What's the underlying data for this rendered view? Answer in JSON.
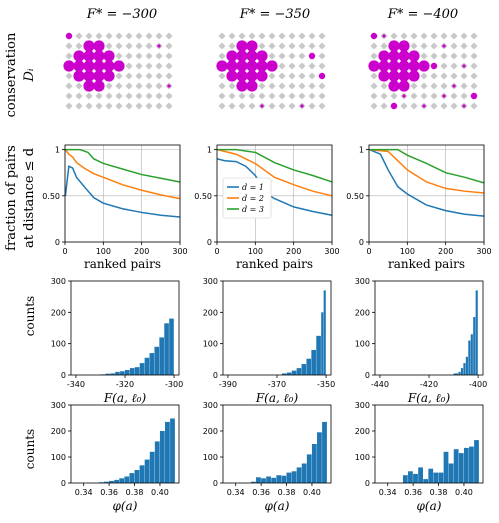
{
  "column_titles": [
    "F* = −300",
    "F* = −350",
    "F* = −400"
  ],
  "row_labels": {
    "conservation": [
      "conservation",
      "Dᵢ"
    ],
    "fraction": [
      "fraction of pairs",
      "at distance ≤ d"
    ],
    "counts": "counts"
  },
  "colors": {
    "d1": "#1f77b4",
    "d2": "#ff7f0e",
    "d3": "#2ca02c",
    "hist": "#1f77b4",
    "dot": "#cc00cc",
    "grid_dot": "#c8c8c8"
  },
  "chart_data": [
    {
      "type": "scatter",
      "panel": "conservation",
      "column": 0,
      "description_values": "dot sizes encode conservation D_i"
    },
    {
      "type": "line",
      "panel": "fraction",
      "column": 0,
      "xlabel": "ranked pairs",
      "ylabel": "fraction of pairs at distance ≤ d",
      "xlim": [
        0,
        300
      ],
      "ylim": [
        0.0,
        1.05
      ],
      "xticks": [
        0,
        100,
        200,
        300
      ],
      "yticks": [
        0.0,
        0.5,
        1.0
      ],
      "series": [
        {
          "name": "d = 1",
          "x": [
            1,
            10,
            20,
            30,
            50,
            75,
            100,
            150,
            200,
            250,
            300
          ],
          "values": [
            0.5,
            0.82,
            0.8,
            0.7,
            0.6,
            0.48,
            0.42,
            0.36,
            0.32,
            0.29,
            0.27
          ]
        },
        {
          "name": "d = 2",
          "x": [
            1,
            10,
            20,
            30,
            50,
            75,
            100,
            150,
            200,
            250,
            300
          ],
          "values": [
            1.0,
            0.95,
            0.92,
            0.86,
            0.8,
            0.74,
            0.7,
            0.62,
            0.56,
            0.51,
            0.47
          ]
        },
        {
          "name": "d = 3",
          "x": [
            1,
            20,
            40,
            60,
            75,
            100,
            150,
            200,
            250,
            300
          ],
          "values": [
            1.0,
            1.0,
            1.0,
            0.97,
            0.9,
            0.85,
            0.79,
            0.73,
            0.69,
            0.65
          ]
        }
      ]
    },
    {
      "type": "line",
      "panel": "fraction",
      "column": 1,
      "xlabel": "ranked pairs",
      "xlim": [
        0,
        300
      ],
      "ylim": [
        0.0,
        1.05
      ],
      "xticks": [
        0,
        100,
        200,
        300
      ],
      "yticks": [
        0.0,
        0.5,
        1.0
      ],
      "legend": "left",
      "series": [
        {
          "name": "d = 1",
          "x": [
            1,
            20,
            50,
            75,
            100,
            130,
            150,
            200,
            250,
            300
          ],
          "values": [
            0.9,
            0.88,
            0.87,
            0.82,
            0.72,
            0.52,
            0.47,
            0.38,
            0.33,
            0.29
          ]
        },
        {
          "name": "d = 2",
          "x": [
            1,
            50,
            100,
            150,
            200,
            250,
            300
          ],
          "values": [
            1.0,
            0.95,
            0.85,
            0.7,
            0.62,
            0.55,
            0.5
          ]
        },
        {
          "name": "d = 3",
          "x": [
            1,
            50,
            100,
            150,
            200,
            250,
            300
          ],
          "values": [
            1.0,
            1.0,
            0.97,
            0.86,
            0.78,
            0.72,
            0.65
          ]
        }
      ]
    },
    {
      "type": "line",
      "panel": "fraction",
      "column": 2,
      "xlabel": "ranked pairs",
      "xlim": [
        0,
        300
      ],
      "ylim": [
        0.0,
        1.05
      ],
      "xticks": [
        0,
        100,
        200,
        300
      ],
      "yticks": [
        0.0,
        0.5,
        1.0
      ],
      "series": [
        {
          "name": "d = 1",
          "x": [
            1,
            30,
            50,
            75,
            100,
            150,
            200,
            250,
            300
          ],
          "values": [
            1.0,
            0.95,
            0.78,
            0.6,
            0.52,
            0.4,
            0.34,
            0.3,
            0.28
          ]
        },
        {
          "name": "d = 2",
          "x": [
            1,
            50,
            75,
            100,
            150,
            200,
            250,
            300
          ],
          "values": [
            1.0,
            0.98,
            0.88,
            0.78,
            0.65,
            0.58,
            0.55,
            0.53
          ]
        },
        {
          "name": "d = 3",
          "x": [
            1,
            75,
            100,
            150,
            200,
            250,
            300
          ],
          "values": [
            1.0,
            1.0,
            0.94,
            0.85,
            0.75,
            0.7,
            0.64
          ]
        }
      ]
    },
    {
      "type": "bar",
      "panel": "hist_F",
      "column": 0,
      "xlabel": "F(a, ℓ₀)",
      "ylabel": "counts",
      "xlim": [
        -342,
        -298
      ],
      "ylim": [
        0,
        300
      ],
      "xticks": [
        -340,
        -320,
        -300
      ],
      "yticks": [
        0,
        100,
        200,
        300
      ],
      "bin_edges": [
        -330,
        -328,
        -326,
        -324,
        -322,
        -320,
        -318,
        -316,
        -314,
        -312,
        -310,
        -308,
        -306,
        -304,
        -302,
        -300
      ],
      "values": [
        2,
        4,
        5,
        10,
        12,
        16,
        22,
        25,
        38,
        55,
        70,
        90,
        120,
        165,
        180
      ]
    },
    {
      "type": "bar",
      "panel": "hist_F",
      "column": 1,
      "xlabel": "F(a, ℓ₀)",
      "xlim": [
        -392,
        -348
      ],
      "ylim": [
        0,
        300
      ],
      "xticks": [
        -390,
        -370,
        -350
      ],
      "yticks": [
        0,
        100,
        200,
        300
      ],
      "bin_edges": [
        -368,
        -366,
        -364,
        -362,
        -360,
        -358,
        -356,
        -354,
        -352,
        -351,
        -350
      ],
      "values": [
        5,
        8,
        14,
        22,
        35,
        52,
        80,
        125,
        200,
        270
      ]
    },
    {
      "type": "bar",
      "panel": "hist_F",
      "column": 2,
      "xlabel": "F(a, ℓ₀)",
      "xlim": [
        -442,
        -398
      ],
      "ylim": [
        0,
        300
      ],
      "xticks": [
        -440,
        -420,
        -400
      ],
      "yticks": [
        0,
        100,
        200,
        300
      ],
      "bin_edges": [
        -410,
        -408,
        -407,
        -406,
        -405,
        -404,
        -403,
        -402,
        -401,
        -400
      ],
      "values": [
        5,
        10,
        22,
        38,
        58,
        110,
        130,
        185,
        270
      ]
    },
    {
      "type": "bar",
      "panel": "hist_phi",
      "column": 0,
      "xlabel": "φ(a)",
      "ylabel": "counts",
      "xlim": [
        0.33,
        0.415
      ],
      "ylim": [
        0,
        300
      ],
      "xticks": [
        0.34,
        0.36,
        0.38,
        0.4
      ],
      "yticks": [
        0,
        100,
        200,
        300
      ],
      "bin_edges": [
        0.352,
        0.356,
        0.36,
        0.364,
        0.368,
        0.372,
        0.376,
        0.38,
        0.384,
        0.388,
        0.392,
        0.396,
        0.4,
        0.404,
        0.408,
        0.412
      ],
      "values": [
        3,
        5,
        8,
        12,
        18,
        25,
        38,
        50,
        68,
        90,
        120,
        160,
        200,
        235,
        248
      ]
    },
    {
      "type": "bar",
      "panel": "hist_phi",
      "column": 1,
      "xlabel": "φ(a)",
      "xlim": [
        0.33,
        0.415
      ],
      "ylim": [
        0,
        300
      ],
      "xticks": [
        0.34,
        0.36,
        0.38,
        0.4
      ],
      "yticks": [
        0,
        100,
        200,
        300
      ],
      "bin_edges": [
        0.352,
        0.356,
        0.36,
        0.364,
        0.368,
        0.372,
        0.376,
        0.38,
        0.384,
        0.388,
        0.392,
        0.396,
        0.4,
        0.404,
        0.408,
        0.412
      ],
      "values": [
        5,
        22,
        18,
        25,
        20,
        30,
        28,
        40,
        45,
        60,
        75,
        110,
        150,
        195,
        235
      ]
    },
    {
      "type": "bar",
      "panel": "hist_phi",
      "column": 2,
      "xlabel": "φ(a)",
      "xlim": [
        0.33,
        0.415
      ],
      "ylim": [
        0,
        300
      ],
      "xticks": [
        0.34,
        0.36,
        0.38,
        0.4
      ],
      "yticks": [
        0,
        100,
        200,
        300
      ],
      "bin_edges": [
        0.352,
        0.356,
        0.36,
        0.364,
        0.368,
        0.372,
        0.376,
        0.38,
        0.384,
        0.388,
        0.392,
        0.396,
        0.4,
        0.404,
        0.408,
        0.412
      ],
      "values": [
        30,
        45,
        35,
        60,
        15,
        55,
        40,
        40,
        120,
        75,
        130,
        115,
        135,
        140,
        165
      ]
    }
  ]
}
